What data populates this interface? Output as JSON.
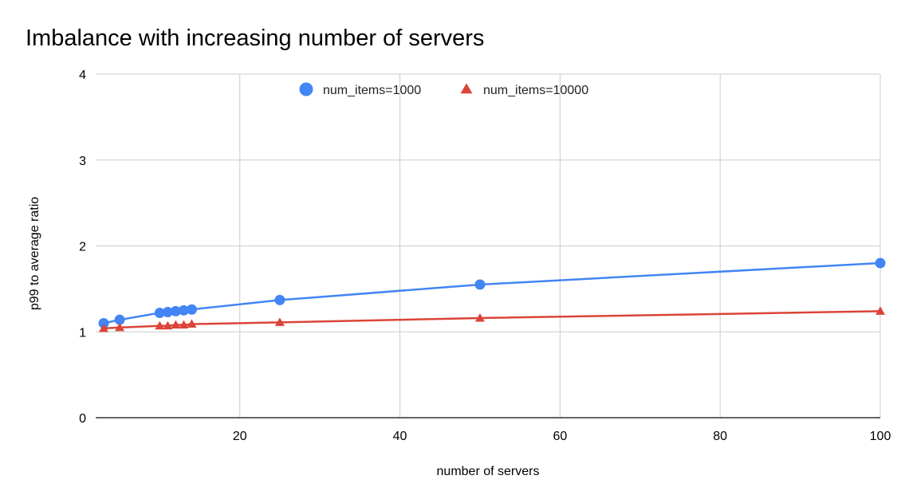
{
  "chart_data": {
    "type": "line",
    "title": "Imbalance with increasing number of servers",
    "xlabel": "number of servers",
    "ylabel": "p99 to average ratio",
    "xlim": [
      2,
      100
    ],
    "ylim": [
      0,
      4
    ],
    "x_ticks": [
      "20",
      "40",
      "60",
      "80",
      "100"
    ],
    "y_ticks": [
      "0",
      "1",
      "2",
      "3",
      "4"
    ],
    "grid": true,
    "legend_position": "top-center",
    "series": [
      {
        "name": "num_items=1000",
        "color": "#4285f4",
        "marker": "circle",
        "x": [
          3,
          5,
          10,
          11,
          12,
          13,
          14,
          25,
          50,
          100
        ],
        "y": [
          1.1,
          1.14,
          1.22,
          1.23,
          1.24,
          1.25,
          1.26,
          1.37,
          1.55,
          1.8
        ]
      },
      {
        "name": "num_items=10000",
        "color": "#db4437",
        "marker": "triangle",
        "x": [
          3,
          5,
          10,
          11,
          12,
          13,
          14,
          25,
          50,
          100
        ],
        "y": [
          1.04,
          1.05,
          1.07,
          1.07,
          1.08,
          1.08,
          1.09,
          1.11,
          1.16,
          1.24
        ]
      }
    ]
  }
}
